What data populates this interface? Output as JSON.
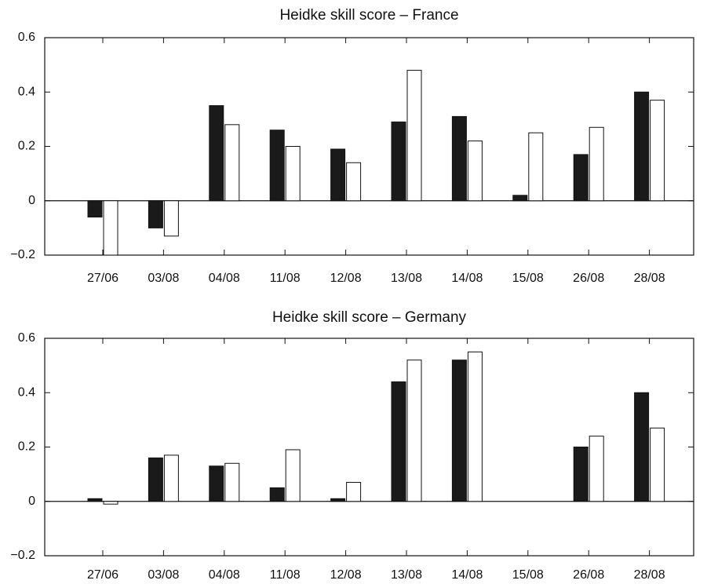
{
  "chart_data": [
    {
      "type": "bar",
      "title": "Heidke skill score – France",
      "categories": [
        "27/06",
        "03/08",
        "04/08",
        "11/08",
        "12/08",
        "13/08",
        "14/08",
        "15/08",
        "26/08",
        "28/08"
      ],
      "series": [
        {
          "color": "#1a1a1a",
          "values": [
            -0.06,
            -0.1,
            0.35,
            0.26,
            0.19,
            0.29,
            0.31,
            0.02,
            0.17,
            0.4
          ]
        },
        {
          "color": "#ffffff",
          "values": [
            -0.2,
            -0.13,
            0.28,
            0.2,
            0.14,
            0.48,
            0.22,
            0.25,
            0.27,
            0.37
          ]
        }
      ],
      "ylim": [
        -0.2,
        0.6
      ],
      "yticks": [
        {
          "value": -0.2,
          "label": "−0.2"
        },
        0,
        0.2,
        0.4,
        0.6
      ]
    },
    {
      "type": "bar",
      "title": "Heidke skill score – Germany",
      "categories": [
        "27/06",
        "03/08",
        "04/08",
        "11/08",
        "12/08",
        "13/08",
        "14/08",
        "15/08",
        "26/08",
        "28/08"
      ],
      "series": [
        {
          "color": "#1a1a1a",
          "values": [
            0.01,
            0.16,
            0.13,
            0.05,
            0.01,
            0.44,
            0.52,
            0,
            0.2,
            0.4
          ]
        },
        {
          "color": "#ffffff",
          "values": [
            -0.01,
            0.17,
            0.14,
            0.19,
            0.07,
            0.52,
            0.55,
            0,
            0.24,
            0.27
          ]
        }
      ],
      "ylim": [
        -0.2,
        0.6
      ],
      "yticks": [
        {
          "value": -0.2,
          "label": "−0.2"
        },
        0,
        0.2,
        0.4,
        0.6
      ]
    }
  ]
}
